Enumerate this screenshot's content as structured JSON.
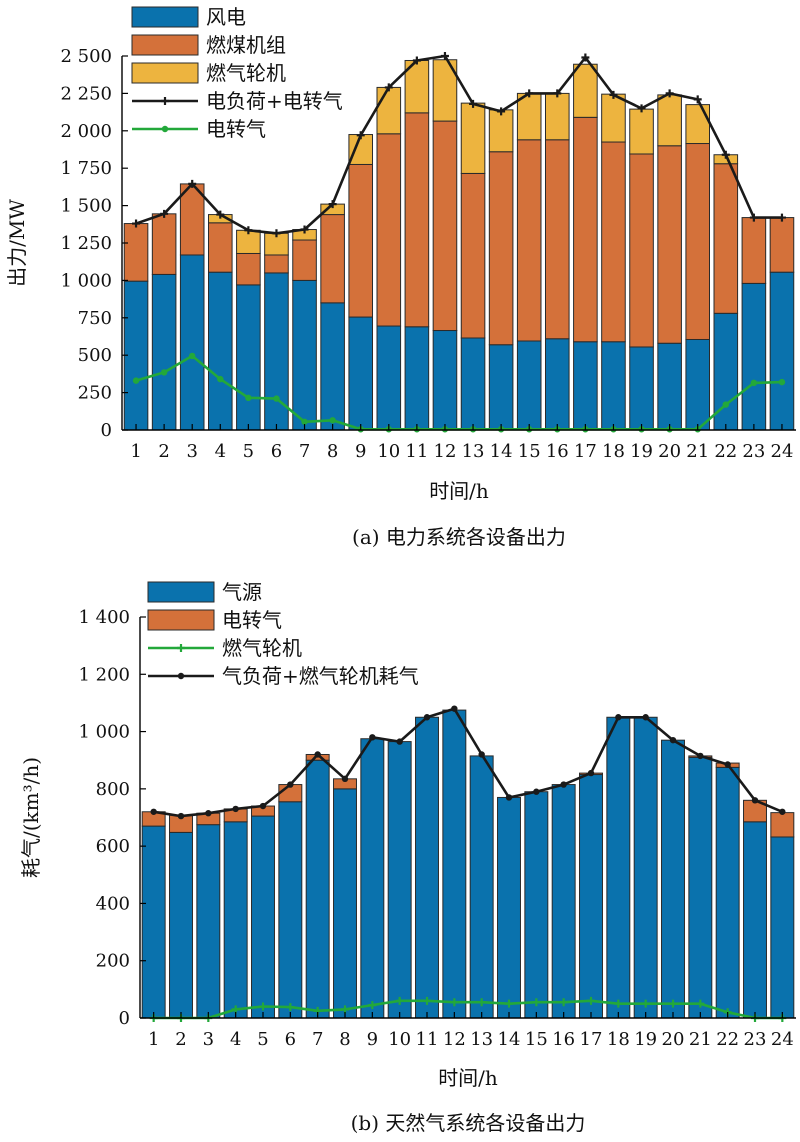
{
  "chart_data": [
    {
      "type": "bar",
      "stacked": true,
      "caption": "(a) 电力系统各设备出力",
      "xlabel": "时间/h",
      "ylabel": "出力/MW",
      "ylim": [
        0,
        2500
      ],
      "yticks": [
        0,
        250,
        500,
        750,
        1000,
        1250,
        1500,
        1750,
        2000,
        2250,
        2500
      ],
      "ytick_labels": [
        "0",
        "250",
        "500",
        "750",
        "1 000",
        "1 250",
        "1 500",
        "1 750",
        "2 000",
        "2 250",
        "2 500"
      ],
      "categories": [
        "1",
        "2",
        "3",
        "4",
        "5",
        "6",
        "7",
        "8",
        "9",
        "10",
        "11",
        "12",
        "13",
        "14",
        "15",
        "16",
        "17",
        "18",
        "19",
        "20",
        "21",
        "22",
        "23",
        "24"
      ],
      "grid": false,
      "legend_position": "top-left",
      "series": [
        {
          "name": "风电",
          "kind": "bar",
          "color": "#0a72ad",
          "values": [
            995,
            1040,
            1170,
            1055,
            970,
            1050,
            1000,
            850,
            755,
            695,
            690,
            665,
            615,
            570,
            595,
            610,
            590,
            590,
            555,
            580,
            605,
            780,
            980,
            1055
          ]
        },
        {
          "name": "燃煤机组",
          "kind": "bar",
          "color": "#d4713a",
          "values": [
            385,
            405,
            475,
            330,
            210,
            120,
            270,
            590,
            1020,
            1285,
            1430,
            1400,
            1100,
            1290,
            1345,
            1330,
            1500,
            1335,
            1290,
            1320,
            1310,
            1000,
            440,
            365
          ]
        },
        {
          "name": "燃气轮机",
          "kind": "bar",
          "color": "#edb43f",
          "values": [
            0,
            0,
            0,
            55,
            155,
            145,
            70,
            70,
            200,
            310,
            350,
            410,
            470,
            280,
            310,
            310,
            355,
            320,
            300,
            340,
            260,
            60,
            0,
            0
          ]
        },
        {
          "name": "电负荷+电转气",
          "kind": "line",
          "color": "#1a1a1a",
          "marker": "plus",
          "values": [
            1380,
            1445,
            1645,
            1440,
            1335,
            1315,
            1340,
            1510,
            1970,
            2290,
            2470,
            2500,
            2180,
            2130,
            2250,
            2250,
            2490,
            2240,
            2150,
            2250,
            2210,
            1840,
            1420,
            1420
          ]
        },
        {
          "name": "电转气",
          "kind": "line",
          "color": "#23a83a",
          "marker": "dot",
          "values": [
            330,
            385,
            495,
            340,
            215,
            210,
            55,
            65,
            5,
            5,
            5,
            5,
            5,
            5,
            5,
            5,
            5,
            5,
            5,
            5,
            5,
            170,
            315,
            320
          ]
        }
      ]
    },
    {
      "type": "bar",
      "stacked": true,
      "caption": "(b) 天然气系统各设备出力",
      "xlabel": "时间/h",
      "ylabel": "耗气/(km³/h)",
      "ylim": [
        0,
        1400
      ],
      "yticks": [
        0,
        200,
        400,
        600,
        800,
        1000,
        1200,
        1400
      ],
      "ytick_labels": [
        "0",
        "200",
        "400",
        "600",
        "800",
        "1 000",
        "1 200",
        "1 400"
      ],
      "categories": [
        "1",
        "2",
        "3",
        "4",
        "5",
        "6",
        "7",
        "8",
        "9",
        "10",
        "11",
        "12",
        "13",
        "14",
        "15",
        "16",
        "17",
        "18",
        "19",
        "20",
        "21",
        "22",
        "23",
        "24"
      ],
      "grid": false,
      "legend_position": "top-left",
      "series": [
        {
          "name": "气源",
          "kind": "bar",
          "color": "#0a72ad",
          "values": [
            670,
            648,
            675,
            685,
            705,
            755,
            900,
            800,
            975,
            965,
            1050,
            1075,
            915,
            770,
            790,
            815,
            850,
            1050,
            1050,
            970,
            910,
            875,
            685,
            632
          ]
        },
        {
          "name": "电转气",
          "kind": "bar",
          "color": "#d4713a",
          "values": [
            50,
            60,
            40,
            45,
            35,
            60,
            20,
            35,
            0,
            0,
            0,
            0,
            0,
            0,
            0,
            0,
            5,
            0,
            0,
            0,
            5,
            15,
            75,
            85
          ]
        },
        {
          "name": "燃气轮机",
          "kind": "line",
          "color": "#23a83a",
          "marker": "plus",
          "values": [
            0,
            0,
            0,
            30,
            40,
            38,
            25,
            30,
            45,
            60,
            60,
            55,
            55,
            50,
            55,
            55,
            60,
            50,
            50,
            50,
            50,
            20,
            0,
            0
          ]
        },
        {
          "name": "气负荷+燃气轮机耗气",
          "kind": "line",
          "color": "#1a1a1a",
          "marker": "dot",
          "values": [
            720,
            705,
            715,
            730,
            740,
            815,
            920,
            835,
            980,
            965,
            1050,
            1080,
            920,
            770,
            790,
            815,
            855,
            1050,
            1050,
            970,
            915,
            885,
            760,
            720
          ]
        }
      ]
    }
  ]
}
